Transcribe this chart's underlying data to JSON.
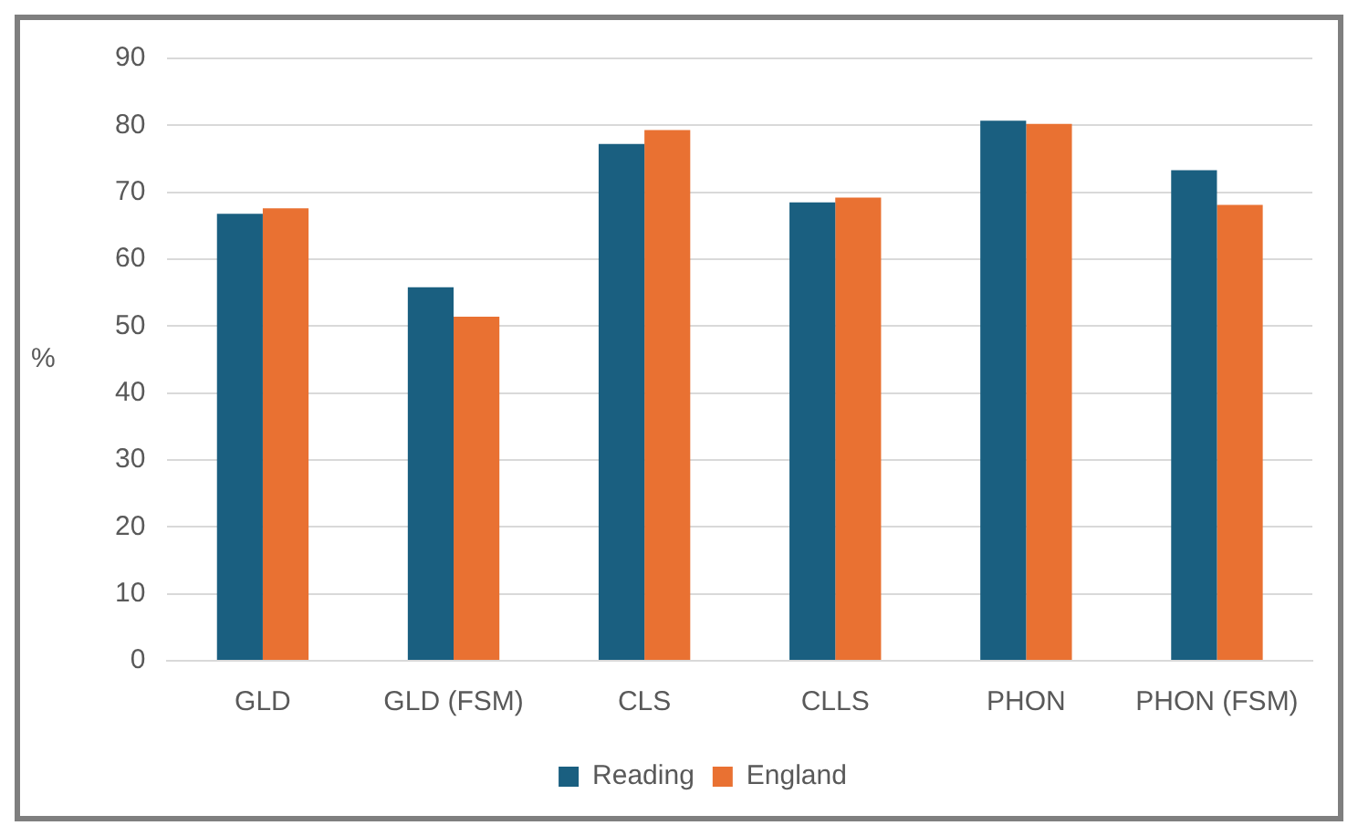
{
  "chart_data": {
    "type": "bar",
    "ylabel": "%",
    "categories": [
      "GLD",
      "GLD (FSM)",
      "CLS",
      "CLLS",
      "PHON",
      "PHON (FSM)"
    ],
    "series": [
      {
        "name": "Reading",
        "color": "#1a5f80",
        "values": [
          66.8,
          55.8,
          77.2,
          68.5,
          80.7,
          73.3
        ]
      },
      {
        "name": "England",
        "color": "#e97132",
        "values": [
          67.6,
          51.4,
          79.3,
          69.2,
          80.2,
          68.1
        ]
      }
    ],
    "ylim": [
      0,
      90
    ],
    "yticks": [
      0,
      10,
      20,
      30,
      40,
      50,
      60,
      70,
      80,
      90
    ],
    "grid": "y",
    "legend": "bottom"
  }
}
